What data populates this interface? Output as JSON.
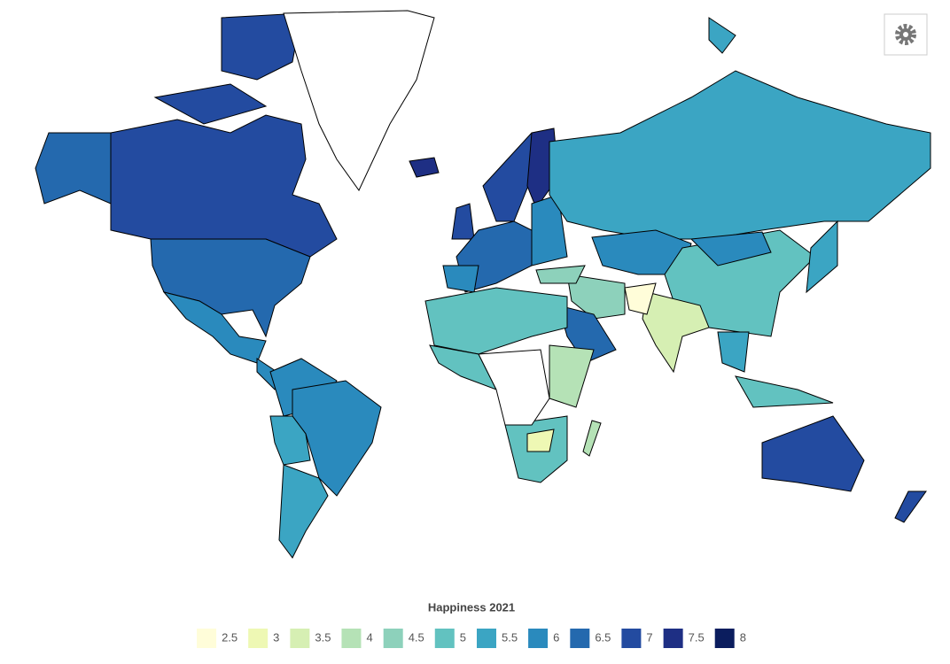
{
  "map": {
    "values": [
      7.1,
      6.95,
      6.3,
      6.0,
      6.0,
      6.3,
      5.8,
      5.9,
      7.5,
      7.0,
      7.4,
      7.8,
      6.9,
      6.0,
      6.3,
      5.5,
      6.2,
      5.3,
      6.0,
      3.8,
      2.5,
      4.9,
      6.5,
      4.9,
      5.0,
      5.0,
      4.3,
      5.2,
      3.1,
      4.2,
      5.8,
      5.9,
      5.3,
      7.2,
      7.3
    ]
  },
  "legend": {
    "title": "Happiness 2021",
    "items": [
      {
        "value": 2.5,
        "color": "#fffdd9"
      },
      {
        "value": 3,
        "color": "#eef8b4"
      },
      {
        "value": 3.5,
        "color": "#d6efb3"
      },
      {
        "value": 4,
        "color": "#b5e2b6"
      },
      {
        "value": 4.5,
        "color": "#8dd1bb"
      },
      {
        "value": 5,
        "color": "#62c2c0"
      },
      {
        "value": 5.5,
        "color": "#3ba5c3"
      },
      {
        "value": 6,
        "color": "#2a8abd"
      },
      {
        "value": 6.5,
        "color": "#2469ae"
      },
      {
        "value": 7,
        "color": "#234ba0"
      },
      {
        "value": 7.5,
        "color": "#1e2f84"
      },
      {
        "value": 8,
        "color": "#0b1d5e"
      }
    ]
  }
}
